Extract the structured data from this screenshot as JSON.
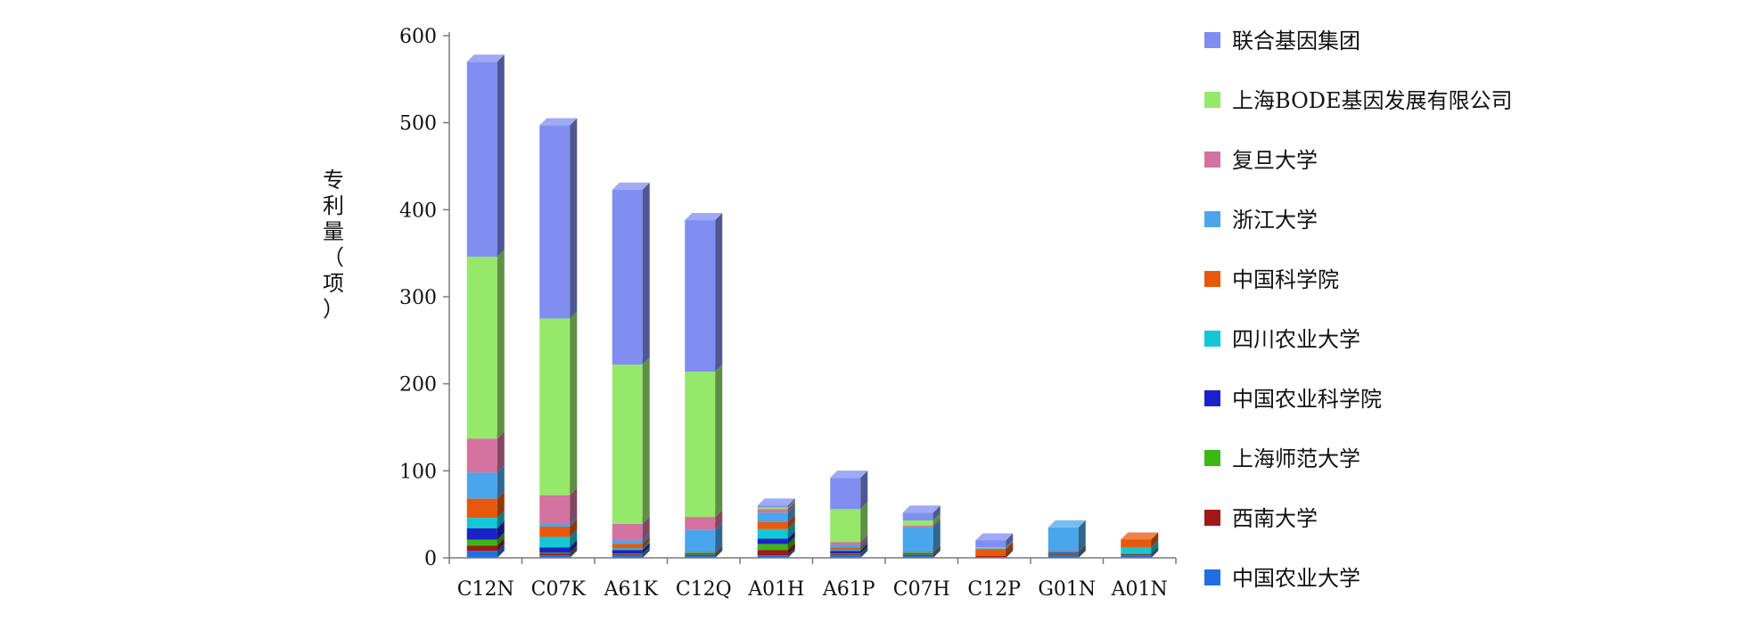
{
  "chart_data": {
    "type": "bar",
    "stacked": true,
    "three_d": true,
    "title": "",
    "xlabel": "",
    "ylabel": "专利量（项）",
    "ylim": [
      0,
      600
    ],
    "yticks": [
      0,
      100,
      200,
      300,
      400,
      500,
      600
    ],
    "grid": false,
    "legend_position": "right",
    "categories": [
      "C12N",
      "C07K",
      "A61K",
      "C12Q",
      "A01H",
      "A61P",
      "C07H",
      "C12P",
      "G01N",
      "A01N"
    ],
    "series": [
      {
        "name": "中国农业大学",
        "color": "#1f6fe0",
        "values": [
          8,
          3,
          3,
          2,
          3,
          3,
          2,
          1,
          3,
          3
        ]
      },
      {
        "name": "西南大学",
        "color": "#a01818",
        "values": [
          6,
          2,
          1,
          1,
          6,
          1,
          1,
          1,
          1,
          1
        ]
      },
      {
        "name": "上海师范大学",
        "color": "#3cb815",
        "values": [
          7,
          1,
          1,
          1,
          7,
          1,
          1,
          0,
          1,
          1
        ]
      },
      {
        "name": "中国农业科学院",
        "color": "#1c22c9",
        "values": [
          13,
          6,
          4,
          1,
          6,
          3,
          1,
          0,
          1,
          0
        ]
      },
      {
        "name": "四川农业大学",
        "color": "#14c7d6",
        "values": [
          12,
          12,
          2,
          1,
          11,
          1,
          1,
          0,
          1,
          7
        ]
      },
      {
        "name": "中国科学院",
        "color": "#e8580c",
        "values": [
          22,
          12,
          5,
          1,
          8,
          3,
          1,
          8,
          1,
          9
        ]
      },
      {
        "name": "浙江大学",
        "color": "#4aa6ec",
        "values": [
          30,
          3,
          4,
          25,
          11,
          3,
          28,
          1,
          27,
          0
        ]
      },
      {
        "name": "复旦大学",
        "color": "#d472a0",
        "values": [
          39,
          33,
          19,
          15,
          4,
          3,
          2,
          0,
          0,
          0
        ]
      },
      {
        "name": "上海BODE基因发展有限公司",
        "color": "#96e86a",
        "values": [
          209,
          203,
          183,
          167,
          2,
          38,
          6,
          1,
          0,
          0
        ]
      },
      {
        "name": "联合基因集团",
        "color": "#7f8ef0",
        "values": [
          224,
          222,
          201,
          174,
          2,
          36,
          9,
          8,
          0,
          0
        ]
      }
    ]
  }
}
